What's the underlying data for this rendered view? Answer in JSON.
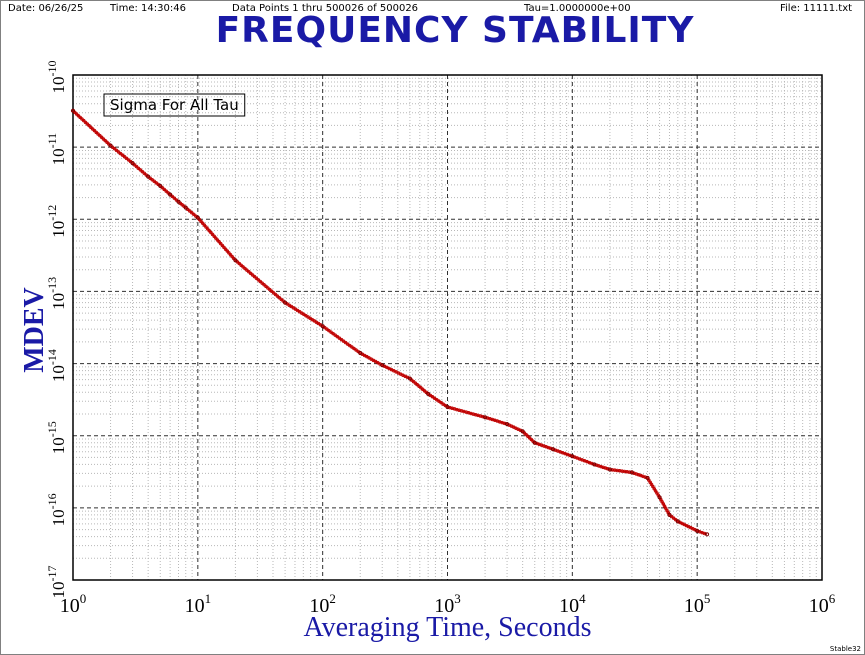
{
  "header": {
    "date": "Date: 06/26/25",
    "time": "Time: 14:30:46",
    "points": "Data Points 1 thru 500026 of 500026",
    "tau": "Tau=1.0000000e+00",
    "file": "File: 11111.txt"
  },
  "footer": "Stable32",
  "chart_data": {
    "type": "line",
    "title": "FREQUENCY STABILITY",
    "xlabel": "Averaging Time, Seconds",
    "ylabel": "MDEV",
    "legend": "Sigma For All Tau",
    "legend_position": "top-left",
    "xscale": "log",
    "yscale": "log",
    "xlim": [
      1,
      1000000
    ],
    "ylim": [
      1e-17,
      1e-10
    ],
    "grid": true,
    "xticks": [
      {
        "base": "10",
        "exp": "0"
      },
      {
        "base": "10",
        "exp": "1"
      },
      {
        "base": "10",
        "exp": "2"
      },
      {
        "base": "10",
        "exp": "3"
      },
      {
        "base": "10",
        "exp": "4"
      },
      {
        "base": "10",
        "exp": "5"
      },
      {
        "base": "10",
        "exp": "6"
      }
    ],
    "yticks": [
      {
        "base": "10",
        "exp": "-10"
      },
      {
        "base": "10",
        "exp": "-11"
      },
      {
        "base": "10",
        "exp": "-12"
      },
      {
        "base": "10",
        "exp": "-13"
      },
      {
        "base": "10",
        "exp": "-14"
      },
      {
        "base": "10",
        "exp": "-15"
      },
      {
        "base": "10",
        "exp": "-16"
      },
      {
        "base": "10",
        "exp": "-17"
      }
    ],
    "line_color": "#c00000",
    "series": [
      {
        "x": [
          1,
          2,
          3,
          4,
          5,
          6,
          7,
          8,
          10,
          20,
          50,
          100,
          200,
          300,
          500,
          700,
          1000,
          2000,
          3000,
          4000,
          5000,
          7000,
          10000,
          15000,
          20000,
          30000,
          40000,
          50000,
          60000,
          70000,
          100000,
          120000
        ],
        "y": [
          3.2e-11,
          1.05e-11,
          6e-12,
          3.9e-12,
          2.9e-12,
          2.2e-12,
          1.75e-12,
          1.45e-12,
          1.05e-12,
          2.7e-13,
          7e-14,
          3.3e-14,
          1.4e-14,
          9.5e-15,
          6.2e-15,
          3.8e-15,
          2.5e-15,
          1.8e-15,
          1.45e-15,
          1.15e-15,
          8e-16,
          6.5e-16,
          5.2e-16,
          4e-16,
          3.4e-16,
          3.1e-16,
          2.6e-16,
          1.4e-16,
          8e-17,
          6.5e-17,
          4.8e-17,
          4.3e-17
        ]
      }
    ]
  }
}
